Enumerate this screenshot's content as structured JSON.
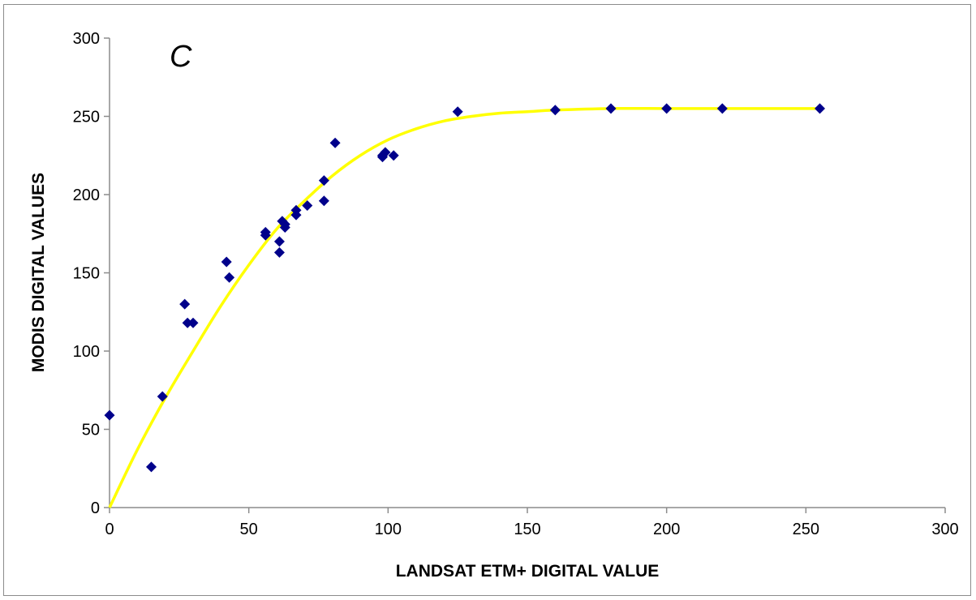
{
  "chart_data": {
    "type": "scatter",
    "title": "",
    "panel_label": "C",
    "xlabel": "LANDSAT ETM+ DIGITAL VALUE",
    "ylabel": "MODIS DIGITAL VALUES",
    "xlim": [
      0,
      300
    ],
    "ylim": [
      0,
      300
    ],
    "xticks": [
      0,
      50,
      100,
      150,
      200,
      250,
      300
    ],
    "yticks": [
      0,
      50,
      100,
      150,
      200,
      250,
      300
    ],
    "grid": false,
    "legend": "none",
    "colors": {
      "points": "#00008b",
      "fit": "#ffff00",
      "axis": "#8c8c8c"
    },
    "series": [
      {
        "kind": "points",
        "marker": "diamond",
        "x": [
          0,
          15,
          19,
          27,
          28,
          30,
          42,
          43,
          56,
          56,
          61,
          61,
          62,
          63,
          63,
          67,
          67,
          71,
          77,
          77,
          81,
          98,
          98,
          99,
          102,
          125,
          160,
          180,
          200,
          220,
          255
        ],
        "y": [
          59,
          26,
          71,
          130,
          118,
          118,
          157,
          147,
          176,
          174,
          170,
          163,
          183,
          181,
          179,
          190,
          187,
          193,
          209,
          196,
          233,
          225,
          224,
          227,
          225,
          253,
          254,
          255,
          255,
          255,
          255
        ]
      },
      {
        "kind": "fit",
        "x": [
          0,
          10,
          20,
          30,
          40,
          50,
          60,
          70,
          80,
          90,
          100,
          110,
          120,
          130,
          140,
          150,
          160,
          180,
          200,
          220,
          255
        ],
        "y": [
          0,
          37,
          70,
          100,
          129,
          155,
          178,
          196,
          212,
          225,
          235,
          242,
          247,
          250,
          252,
          253,
          254,
          255,
          255,
          255,
          255
        ]
      }
    ]
  }
}
